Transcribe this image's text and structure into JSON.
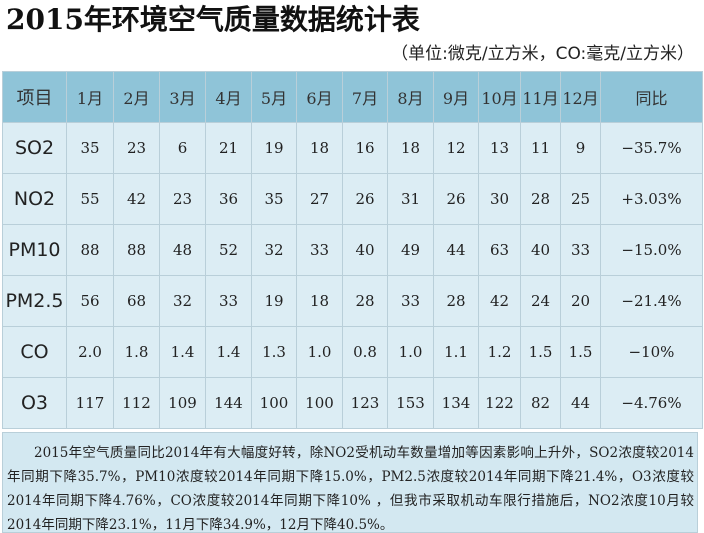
{
  "title": "2015年环境空气质量数据统计表",
  "unit_note": "（单位:微克/立方米，CO:毫克/立方米）",
  "table": {
    "headers": [
      "项目",
      "1月",
      "2月",
      "3月",
      "4月",
      "5月",
      "6月",
      "7月",
      "8月",
      "9月",
      "10月",
      "11月",
      "12月",
      "同比"
    ],
    "rows": [
      [
        "SO2",
        "35",
        "23",
        "6",
        "21",
        "19",
        "18",
        "16",
        "18",
        "12",
        "13",
        "11",
        "9",
        "−35.7%"
      ],
      [
        "NO2",
        "55",
        "42",
        "23",
        "36",
        "35",
        "27",
        "26",
        "31",
        "26",
        "30",
        "28",
        "25",
        "+3.03%"
      ],
      [
        "PM10",
        "88",
        "88",
        "48",
        "52",
        "32",
        "33",
        "40",
        "49",
        "44",
        "63",
        "40",
        "33",
        "−15.0%"
      ],
      [
        "PM2.5",
        "56",
        "68",
        "32",
        "33",
        "19",
        "18",
        "28",
        "33",
        "28",
        "42",
        "24",
        "20",
        "−21.4%"
      ],
      [
        "CO",
        "2.0",
        "1.8",
        "1.4",
        "1.4",
        "1.3",
        "1.0",
        "0.8",
        "1.0",
        "1.1",
        "1.2",
        "1.5",
        "1.5",
        "−10%"
      ],
      [
        "O3",
        "117",
        "112",
        "109",
        "144",
        "100",
        "100",
        "123",
        "153",
        "134",
        "122",
        "82",
        "44",
        "−4.76%"
      ]
    ]
  },
  "summary": "2015年空气质量同比2014年有大幅度好转，除NO2受机动车数量增加等因素影响上升外，SO2浓度较2014年同期下降35.7%，PM10浓度较2014年同期下降15.0%，PM2.5浓度较2014年同期下降21.4%，O3浓度较2014年同期下降4.76%，CO浓度较2014年同期下降10% ，但我市采取机动车限行措施后，NO2浓度10月较2014年同期下降23.1%，11月下降34.9%，12月下降40.5%。",
  "colors": {
    "header_bg": "#8fc4d8",
    "cell_bg": "#dcedf4",
    "note_bg": "#d3e8f1",
    "border": "#b9cfd9"
  }
}
